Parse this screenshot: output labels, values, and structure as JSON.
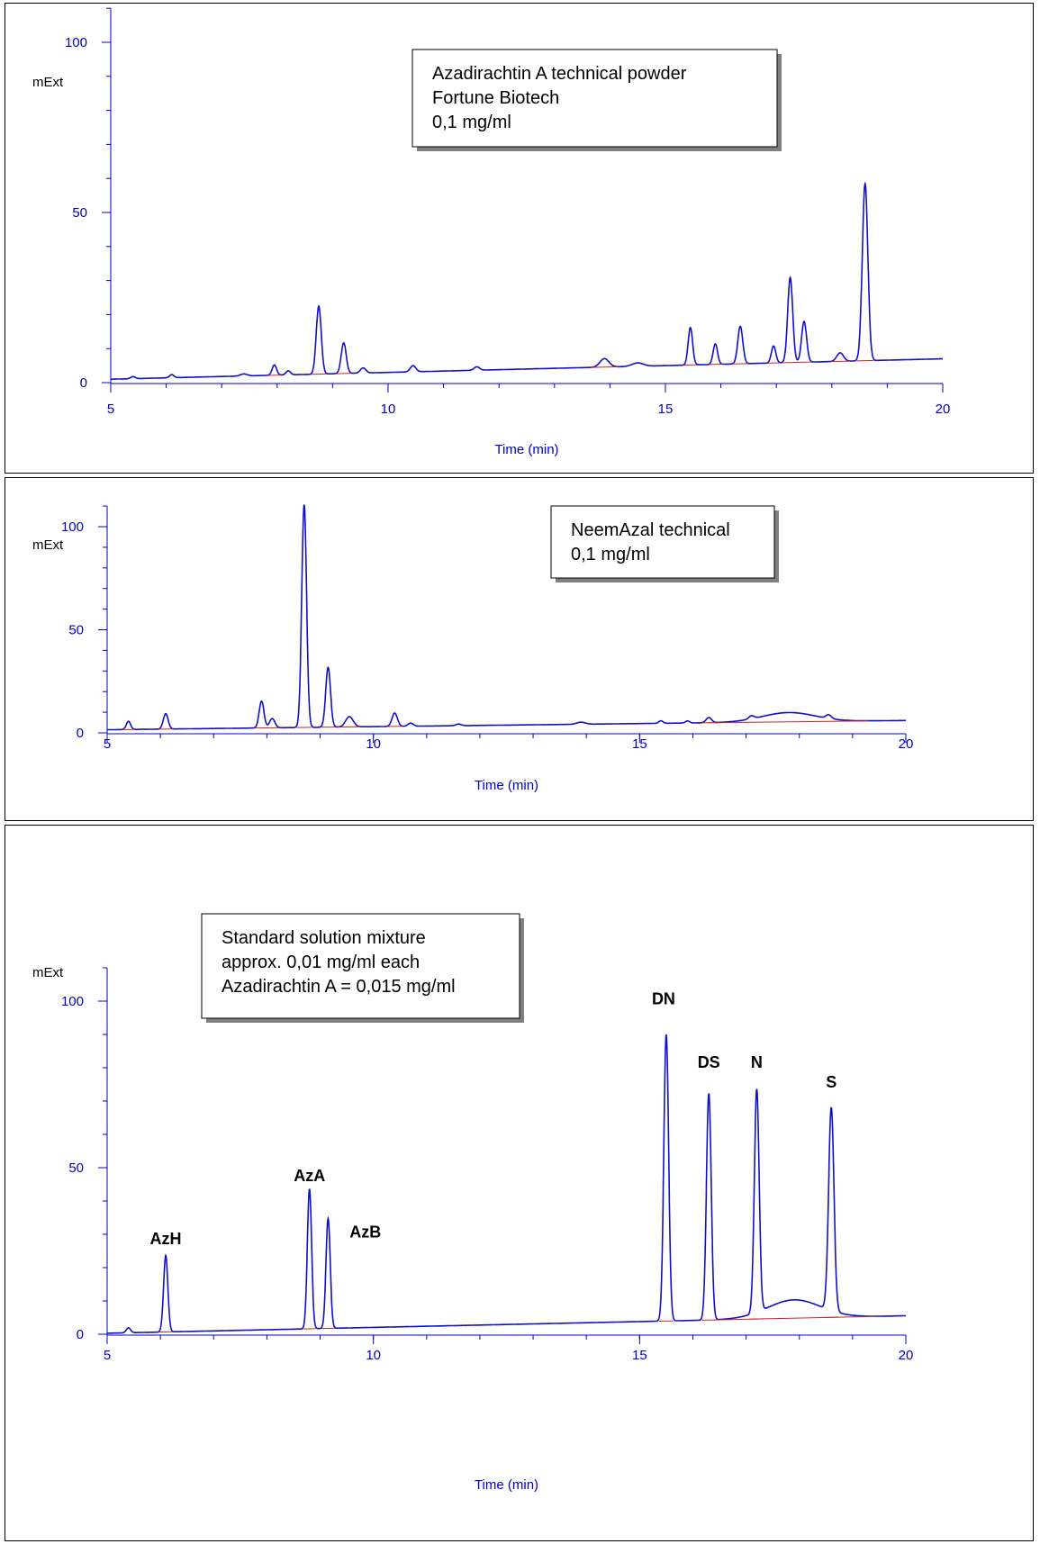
{
  "chart_data": [
    {
      "type": "line",
      "annotation": [
        "Azadirachtin A technical powder",
        "Fortune Biotech",
        "0,1 mg/ml"
      ],
      "xlabel": "Time (min)",
      "ylabel": "mExt",
      "xlim": [
        5,
        20
      ],
      "ylim": [
        0,
        110
      ],
      "xticks": [
        5,
        10,
        15,
        20
      ],
      "yticks": [
        0,
        50,
        100
      ],
      "line_color": "#1010cc",
      "baseline_color": "#cc2222",
      "baseline_value": 1,
      "baseline_slope": 0.4,
      "series": [
        {
          "peaks": [
            {
              "x": 5.4,
              "y": 0.6,
              "w": 0.04
            },
            {
              "x": 6.1,
              "y": 0.9,
              "w": 0.04
            },
            {
              "x": 7.4,
              "y": 0.6,
              "w": 0.06
            },
            {
              "x": 7.95,
              "y": 3,
              "w": 0.04
            },
            {
              "x": 8.2,
              "y": 1.2,
              "w": 0.04
            },
            {
              "x": 8.75,
              "y": 20,
              "w": 0.045
            },
            {
              "x": 9.2,
              "y": 9,
              "w": 0.045
            },
            {
              "x": 9.55,
              "y": 1.5,
              "w": 0.05
            },
            {
              "x": 10.45,
              "y": 1.8,
              "w": 0.05
            },
            {
              "x": 11.6,
              "y": 1.0,
              "w": 0.05
            },
            {
              "x": 13.9,
              "y": 2.5,
              "w": 0.08
            },
            {
              "x": 14.5,
              "y": 1,
              "w": 0.1
            },
            {
              "x": 15.45,
              "y": 11,
              "w": 0.04
            },
            {
              "x": 15.9,
              "y": 6,
              "w": 0.04
            },
            {
              "x": 16.35,
              "y": 11,
              "w": 0.045
            },
            {
              "x": 16.95,
              "y": 5,
              "w": 0.04
            },
            {
              "x": 17.25,
              "y": 25,
              "w": 0.045
            },
            {
              "x": 17.5,
              "y": 12,
              "w": 0.045
            },
            {
              "x": 18.15,
              "y": 2.5,
              "w": 0.06
            },
            {
              "x": 18.6,
              "y": 52,
              "w": 0.05
            }
          ]
        }
      ]
    },
    {
      "type": "line",
      "annotation": [
        "NeemAzal technical",
        "0,1 mg/ml"
      ],
      "xlabel": "Time (min)",
      "ylabel": "mExt",
      "xlim": [
        5,
        20
      ],
      "ylim": [
        0,
        110
      ],
      "xticks": [
        5,
        10,
        15,
        20
      ],
      "yticks": [
        0,
        50,
        100
      ],
      "line_color": "#1010cc",
      "baseline_color": "#cc2222",
      "baseline_value": 1.5,
      "baseline_slope": 0.3,
      "series": [
        {
          "peaks": [
            {
              "x": 5.4,
              "y": 4,
              "w": 0.04
            },
            {
              "x": 6.1,
              "y": 7.5,
              "w": 0.045
            },
            {
              "x": 7.9,
              "y": 13,
              "w": 0.045
            },
            {
              "x": 8.1,
              "y": 4.5,
              "w": 0.05
            },
            {
              "x": 8.7,
              "y": 108,
              "w": 0.045
            },
            {
              "x": 9.15,
              "y": 29,
              "w": 0.045
            },
            {
              "x": 9.55,
              "y": 5,
              "w": 0.07
            },
            {
              "x": 10.4,
              "y": 6.5,
              "w": 0.05
            },
            {
              "x": 10.7,
              "y": 1.5,
              "w": 0.05
            },
            {
              "x": 11.6,
              "y": 0.8,
              "w": 0.05
            },
            {
              "x": 13.9,
              "y": 1,
              "w": 0.08
            },
            {
              "x": 15.4,
              "y": 1.2,
              "w": 0.04
            },
            {
              "x": 15.9,
              "y": 1.0,
              "w": 0.04
            },
            {
              "x": 16.3,
              "y": 2.5,
              "w": 0.05
            },
            {
              "x": 17.1,
              "y": 1.5,
              "w": 0.05
            },
            {
              "x": 17.8,
              "y": 4.5,
              "w": 0.5
            },
            {
              "x": 18.55,
              "y": 1.8,
              "w": 0.05
            }
          ]
        }
      ]
    },
    {
      "type": "line",
      "annotation": [
        "Standard solution mixture",
        "approx. 0,01 mg/ml each",
        "Azadirachtin A = 0,015 mg/ml"
      ],
      "xlabel": "Time (min)",
      "ylabel": "mExt",
      "xlim": [
        5,
        20
      ],
      "ylim": [
        0,
        110
      ],
      "xticks": [
        5,
        10,
        15,
        20
      ],
      "yticks": [
        0,
        50,
        100
      ],
      "line_color": "#1010cc",
      "baseline_color": "#cc2222",
      "baseline_value": 0.3,
      "baseline_slope": 0.35,
      "series": [
        {
          "peaks": [
            {
              "x": 5.4,
              "y": 1.5,
              "w": 0.04
            },
            {
              "x": 6.1,
              "y": 23,
              "w": 0.04
            },
            {
              "x": 8.8,
              "y": 42,
              "w": 0.04
            },
            {
              "x": 9.15,
              "y": 33,
              "w": 0.04
            },
            {
              "x": 15.5,
              "y": 86,
              "w": 0.045
            },
            {
              "x": 16.3,
              "y": 68,
              "w": 0.045
            },
            {
              "x": 17.2,
              "y": 67,
              "w": 0.045
            },
            {
              "x": 17.9,
              "y": 5.5,
              "w": 0.5
            },
            {
              "x": 18.6,
              "y": 61,
              "w": 0.05
            }
          ]
        }
      ],
      "peak_labels": [
        {
          "text": "AzH",
          "x": 6.1,
          "y": 27
        },
        {
          "text": "AzA",
          "x": 8.8,
          "y": 46
        },
        {
          "text": "AzB",
          "x": 9.85,
          "y": 29
        },
        {
          "text": "DN",
          "x": 15.45,
          "y": 99
        },
        {
          "text": "DS",
          "x": 16.3,
          "y": 80
        },
        {
          "text": "N",
          "x": 17.2,
          "y": 80
        },
        {
          "text": "S",
          "x": 18.6,
          "y": 74
        }
      ]
    }
  ]
}
